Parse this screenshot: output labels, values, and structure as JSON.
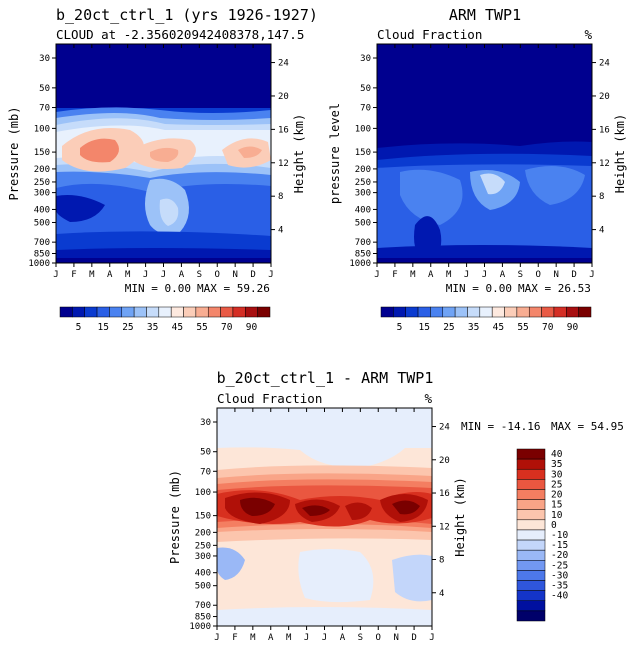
{
  "palette": {
    "abs": [
      "#00008f",
      "#0018b0",
      "#0a3bd0",
      "#2a5fe6",
      "#4a82f0",
      "#6fa3f5",
      "#9cc2f8",
      "#c6dcfa",
      "#e8f1fd",
      "#fde9df",
      "#fbcdb8",
      "#f8ad92",
      "#f3866b",
      "#e95a45",
      "#d42e25",
      "#a80f10",
      "#7a0000"
    ],
    "diff": [
      "#00006a",
      "#0010a0",
      "#1434c8",
      "#2f56dc",
      "#4d78ea",
      "#7298f2",
      "#9ab8f6",
      "#c3d6fa",
      "#e6eefc",
      "#fde6d8",
      "#fcc5ad",
      "#f9a487",
      "#f47e61",
      "#ea5740",
      "#d8301f",
      "#b01008",
      "#7a0000"
    ]
  },
  "chart_data": [
    {
      "type": "heatmap",
      "title": "b_20ct_ctrl_1 (yrs 1926-1927)",
      "subtitle": "CLOUD at -2.356020942408378,147.5",
      "ylabel": "Pressure (mb)",
      "y2label": "Height (km)",
      "x_ticks": [
        "J",
        "F",
        "M",
        "A",
        "M",
        "J",
        "J",
        "A",
        "S",
        "O",
        "N",
        "D",
        "J"
      ],
      "y_ticks": [
        30,
        50,
        70,
        100,
        150,
        200,
        250,
        300,
        400,
        500,
        700,
        850,
        1000
      ],
      "y2_ticks": [
        24,
        20,
        16,
        12,
        8,
        4
      ],
      "min_label": "MIN =    0.00",
      "max_label": "MAX =   59.26",
      "colorbar_labels": [
        "5",
        "15",
        "25",
        "35",
        "45",
        "55",
        "70",
        "90"
      ],
      "value_range": [
        0,
        59.26
      ]
    },
    {
      "type": "heatmap",
      "title": "ARM TWP1",
      "subtitle": "Cloud Fraction",
      "unit": "%",
      "ylabel": "pressure level",
      "y2label": "Height (km)",
      "x_ticks": [
        "J",
        "F",
        "M",
        "A",
        "M",
        "J",
        "J",
        "A",
        "S",
        "O",
        "N",
        "D",
        "J"
      ],
      "y_ticks": [
        30,
        50,
        70,
        100,
        150,
        200,
        250,
        300,
        400,
        500,
        700,
        850,
        1000
      ],
      "y2_ticks": [
        24,
        20,
        16,
        12,
        8,
        4
      ],
      "min_label": "MIN =    0.00",
      "max_label": "MAX =   26.53",
      "colorbar_labels": [
        "5",
        "15",
        "25",
        "35",
        "45",
        "55",
        "70",
        "90"
      ],
      "value_range": [
        0,
        26.53
      ]
    },
    {
      "type": "heatmap",
      "title": "b_20ct_ctrl_1 - ARM TWP1",
      "subtitle": "Cloud Fraction",
      "unit": "%",
      "ylabel": "Pressure (mb)",
      "y2label": "Height (km)",
      "x_ticks": [
        "J",
        "F",
        "M",
        "A",
        "M",
        "J",
        "J",
        "A",
        "S",
        "O",
        "N",
        "D",
        "J"
      ],
      "y_ticks": [
        30,
        50,
        70,
        100,
        150,
        200,
        250,
        300,
        400,
        500,
        700,
        850,
        1000
      ],
      "y2_ticks": [
        24,
        20,
        16,
        12,
        8,
        4
      ],
      "min_label": "MIN = -14.16",
      "max_label": "MAX =  54.95",
      "colorbar_labels": [
        "40",
        "35",
        "30",
        "25",
        "20",
        "15",
        "10",
        "0",
        "-10",
        "-15",
        "-20",
        "-25",
        "-30",
        "-35",
        "-40"
      ],
      "value_range": [
        -14.16,
        54.95
      ]
    }
  ]
}
